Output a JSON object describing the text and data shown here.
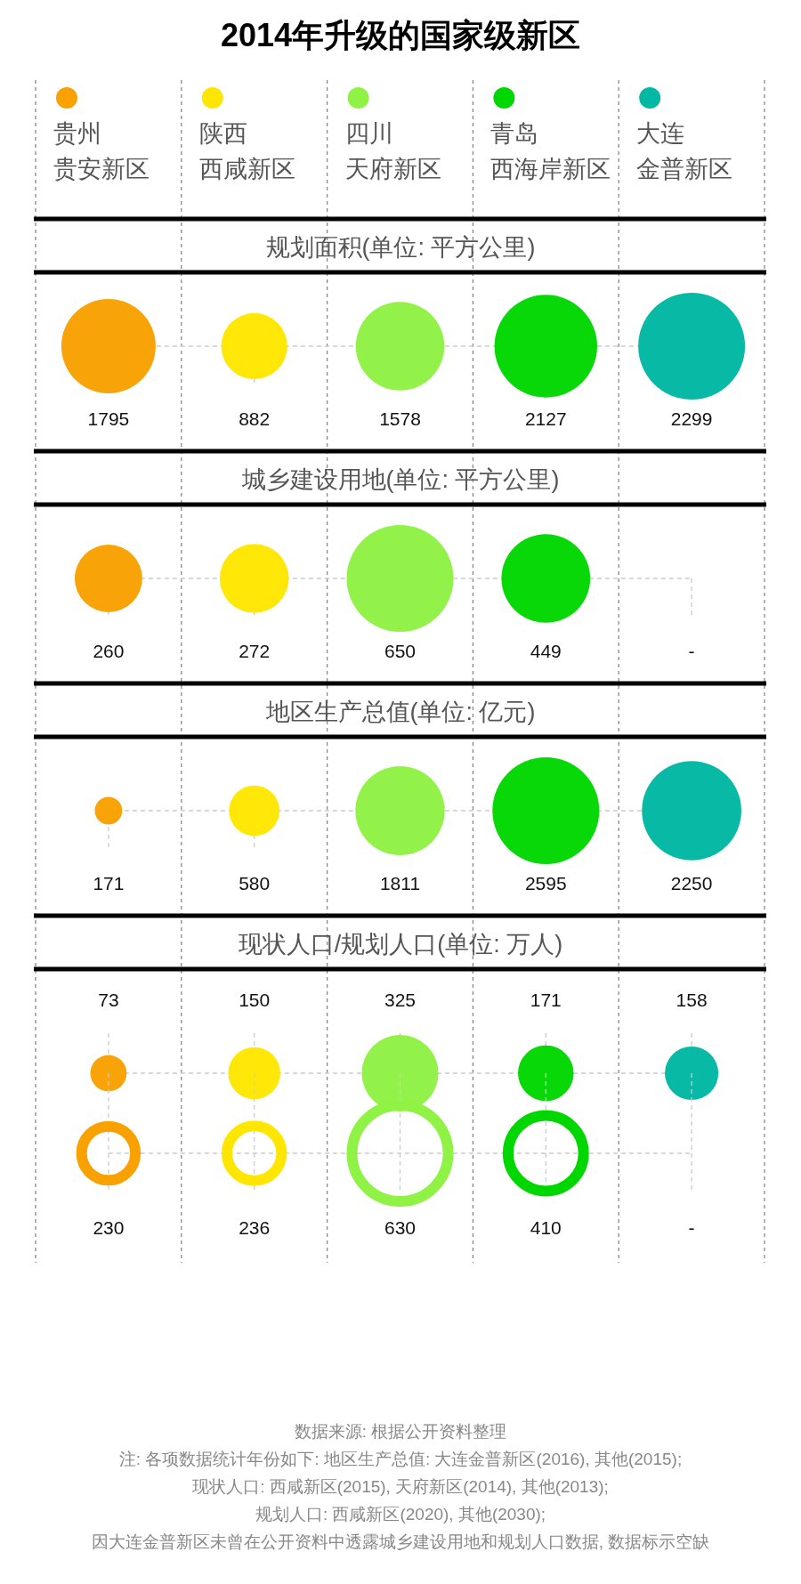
{
  "chart_data": [
    {
      "type": "other",
      "title": "2014年升级的国家级新区",
      "subtitle": "规划面积(单位: 平方公里)",
      "categories": [
        "贵州贵安新区",
        "陕西西咸新区",
        "四川天府新区",
        "青岛西海岸新区",
        "大连金普新区"
      ],
      "colors": [
        "#f8a100",
        "#ffe600",
        "#8ff244",
        "#00d600",
        "#00b8a3"
      ],
      "values": [
        1795,
        882,
        1578,
        2127,
        2299
      ],
      "data_labels": true
    },
    {
      "type": "other",
      "title": "城乡建设用地(单位: 平方公里)",
      "categories": [
        null,
        null,
        null,
        null,
        null
      ],
      "colors": [
        "#f8a100",
        "#ffe600",
        "#8ff244",
        "#00d600",
        "#00b8a3"
      ],
      "values": [
        260,
        272,
        650,
        449,
        null
      ],
      "value_labels": [
        "260",
        "272",
        "650",
        "449",
        "-"
      ]
    },
    {
      "type": "other",
      "title": "地区生产总值(单位: 亿元)",
      "categories": [
        null,
        null,
        null,
        null,
        null
      ],
      "colors": [
        "#f8a100",
        "#ffe600",
        "#8ff244",
        "#00d600",
        "#00b8a3"
      ],
      "values": [
        171,
        580,
        1811,
        2595,
        2250
      ],
      "data_labels": true
    },
    {
      "type": "other",
      "title": "现状人口/规划人口(单位: 万人)",
      "categories": [
        null,
        null,
        null,
        null,
        null
      ],
      "colors": [
        "#f8a100",
        "#ffe600",
        "#8ff244",
        "#00d600",
        "#00b8a3"
      ],
      "values": [
        73,
        150,
        325,
        171,
        158
      ],
      "data_labels": true
    },
    {
      "type": "other",
      "categories": [
        null,
        null,
        null,
        null,
        null
      ],
      "colors": [
        "#f8a100",
        "#ffe600",
        "#8ff244",
        "#00d600",
        "#00b8a3"
      ],
      "values": [
        230,
        236,
        630,
        410,
        null
      ],
      "value_labels": [
        "230",
        "236",
        "630",
        "410",
        "-"
      ],
      "annotations": [
        "数据来源: 根据公开资料整理",
        "注: 各项数据统计年份如下: 地区生产总值: 大连金普新区(2016), 其他(2015);",
        "现状人口: 西咸新区(2015), 天府新区(2014), 其他(2013);",
        "规划人口: 西咸新区(2020), 其他(2030);",
        "因大连金普新区未曾在公开资料中透露城乡建设用地和规划人口数据, 数据标示空缺"
      ]
    }
  ]
}
